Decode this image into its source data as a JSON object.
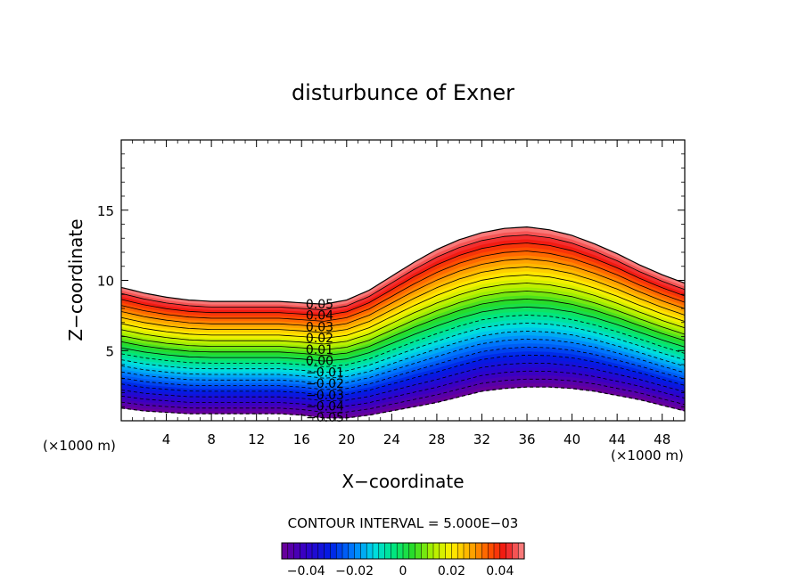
{
  "chart_data": {
    "type": "contour",
    "title": "disturbunce of Exner",
    "xlabel": "X−coordinate",
    "ylabel": "Z−coordinate",
    "x_unit_left": "(×1000 m)",
    "x_unit_right": "(×1000 m)",
    "xlim": [
      0,
      50
    ],
    "ylim": [
      0,
      20
    ],
    "x_ticks": [
      4,
      8,
      12,
      16,
      20,
      24,
      28,
      32,
      36,
      40,
      44,
      48
    ],
    "x_tick_labels": [
      "4",
      "8",
      "12",
      "16",
      "20",
      "24",
      "28",
      "32",
      "36",
      "40",
      "44",
      "48"
    ],
    "y_ticks": [
      5,
      10,
      15
    ],
    "y_tick_labels": [
      "5",
      "10",
      "15"
    ],
    "contour_interval_text": "CONTOUR INTERVAL = 5.000E−03",
    "contour_interval": 0.005,
    "value_range": [
      -0.05,
      0.05
    ],
    "surface_profile": {
      "x": [
        0,
        2,
        4,
        6,
        8,
        10,
        12,
        14,
        16,
        18,
        20,
        22,
        24,
        26,
        28,
        30,
        32,
        34,
        36,
        38,
        40,
        42,
        44,
        46,
        48,
        50
      ],
      "bottom": [
        0.9,
        0.7,
        0.6,
        0.5,
        0.5,
        0.5,
        0.5,
        0.5,
        0.4,
        0.2,
        0.2,
        0.4,
        0.7,
        1.0,
        1.3,
        1.7,
        2.1,
        2.3,
        2.4,
        2.4,
        2.3,
        2.1,
        1.8,
        1.5,
        1.1,
        0.7
      ],
      "top": [
        9.5,
        9.1,
        8.8,
        8.6,
        8.5,
        8.5,
        8.5,
        8.5,
        8.4,
        8.3,
        8.6,
        9.3,
        10.3,
        11.3,
        12.2,
        12.9,
        13.4,
        13.7,
        13.8,
        13.6,
        13.2,
        12.6,
        11.9,
        11.1,
        10.4,
        9.8
      ]
    },
    "contour_labels": [
      "0.05",
      "0.04",
      "0.03",
      "0.02",
      "0.01",
      "0.00",
      "−0.01",
      "−0.02",
      "−0.03",
      "−0.04",
      "−0.05"
    ],
    "colorbar": {
      "range": [
        -0.05,
        0.05
      ],
      "tick_values": [
        -0.04,
        -0.02,
        0,
        0.02,
        0.04
      ],
      "tick_labels": [
        "−0.04",
        "−0.02",
        "0",
        "0.02",
        "0.04"
      ]
    },
    "grid": false
  }
}
